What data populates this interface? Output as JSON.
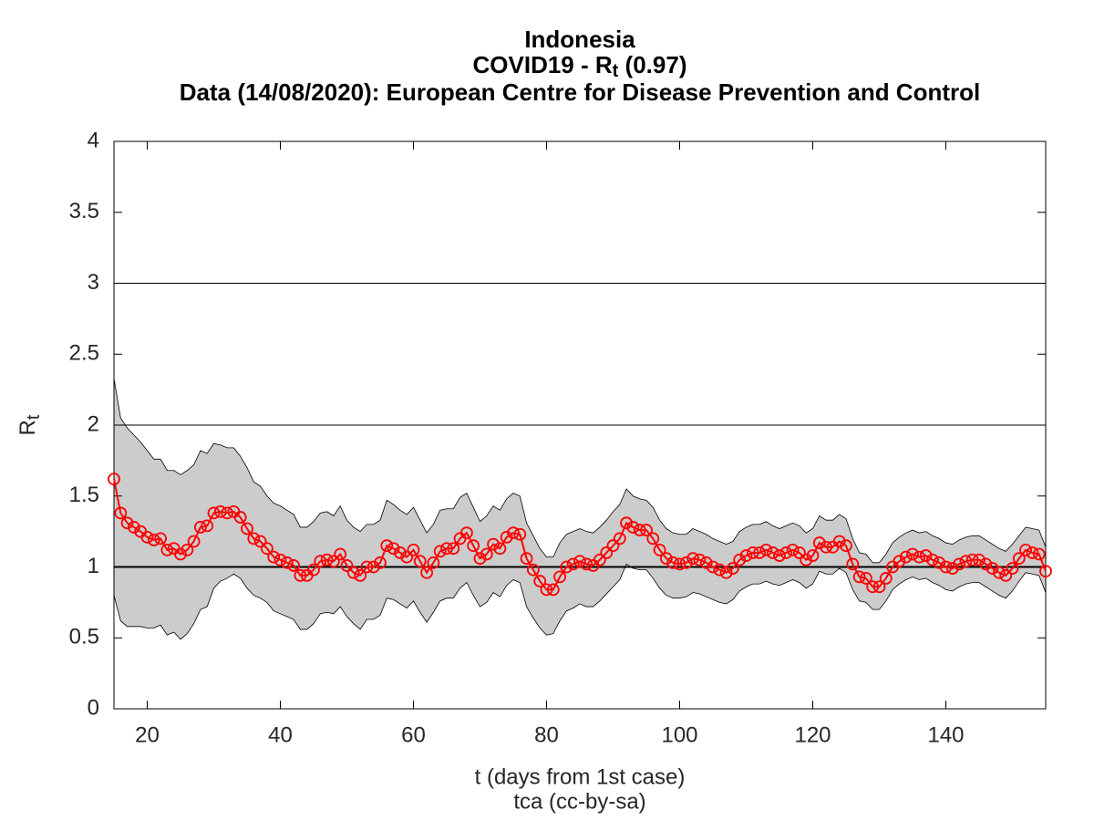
{
  "chart_data": {
    "type": "line",
    "title": [
      "Indonesia",
      [
        "COVID19 - R",
        "t",
        " (0.97)"
      ],
      "Data (14/08/2020): European Centre for Disease Prevention and Control"
    ],
    "xlabel": "t (days from 1st case)",
    "ylabel": [
      "R",
      "t"
    ],
    "credit": "tca (cc-by-sa)",
    "xlim": [
      15,
      155
    ],
    "ylim": [
      0,
      4
    ],
    "xticks": [
      20,
      40,
      60,
      80,
      100,
      120,
      140
    ],
    "yticks": [
      0,
      0.5,
      1,
      1.5,
      2,
      2.5,
      3,
      3.5,
      4
    ],
    "reference_lines": [
      1,
      2,
      3
    ],
    "x": [
      15,
      16,
      17,
      18,
      19,
      20,
      21,
      22,
      23,
      24,
      25,
      26,
      27,
      28,
      29,
      30,
      31,
      32,
      33,
      34,
      35,
      36,
      37,
      38,
      39,
      40,
      41,
      42,
      43,
      44,
      45,
      46,
      47,
      48,
      49,
      50,
      51,
      52,
      53,
      54,
      55,
      56,
      57,
      58,
      59,
      60,
      61,
      62,
      63,
      64,
      65,
      66,
      67,
      68,
      69,
      70,
      71,
      72,
      73,
      74,
      75,
      76,
      77,
      78,
      79,
      80,
      81,
      82,
      83,
      84,
      85,
      86,
      87,
      88,
      89,
      90,
      91,
      92,
      93,
      94,
      95,
      96,
      97,
      98,
      99,
      100,
      101,
      102,
      103,
      104,
      105,
      106,
      107,
      108,
      109,
      110,
      111,
      112,
      113,
      114,
      115,
      116,
      117,
      118,
      119,
      120,
      121,
      122,
      123,
      124,
      125,
      126,
      127,
      128,
      129,
      130,
      131,
      132,
      133,
      134,
      135,
      136,
      137,
      138,
      139,
      140,
      141,
      142,
      143,
      144,
      145,
      146,
      147,
      148,
      149,
      150,
      151,
      152,
      153,
      154,
      155
    ],
    "series": [
      {
        "color": "#ff0000",
        "values": [
          1.62,
          1.38,
          1.31,
          1.28,
          1.25,
          1.21,
          1.19,
          1.2,
          1.12,
          1.13,
          1.09,
          1.12,
          1.18,
          1.28,
          1.29,
          1.38,
          1.39,
          1.38,
          1.39,
          1.35,
          1.27,
          1.2,
          1.18,
          1.13,
          1.07,
          1.05,
          1.03,
          1.01,
          0.94,
          0.94,
          0.98,
          1.04,
          1.05,
          1.04,
          1.09,
          1.01,
          0.96,
          0.94,
          1.0,
          1.0,
          1.03,
          1.15,
          1.13,
          1.1,
          1.07,
          1.12,
          1.04,
          0.96,
          1.03,
          1.11,
          1.13,
          1.13,
          1.2,
          1.24,
          1.15,
          1.06,
          1.09,
          1.16,
          1.13,
          1.21,
          1.24,
          1.23,
          1.06,
          0.98,
          0.9,
          0.84,
          0.84,
          0.93,
          1.0,
          1.02,
          1.04,
          1.02,
          1.01,
          1.05,
          1.1,
          1.15,
          1.2,
          1.31,
          1.28,
          1.26,
          1.26,
          1.2,
          1.12,
          1.06,
          1.03,
          1.02,
          1.03,
          1.06,
          1.05,
          1.03,
          1.0,
          0.98,
          0.96,
          0.99,
          1.05,
          1.08,
          1.1,
          1.1,
          1.12,
          1.1,
          1.08,
          1.1,
          1.12,
          1.1,
          1.05,
          1.08,
          1.17,
          1.14,
          1.14,
          1.18,
          1.15,
          1.02,
          0.93,
          0.92,
          0.86,
          0.86,
          0.92,
          1.0,
          1.04,
          1.07,
          1.09,
          1.07,
          1.08,
          1.05,
          1.03,
          1.0,
          0.99,
          1.02,
          1.04,
          1.05,
          1.05,
          1.02,
          0.99,
          0.96,
          0.94,
          0.99,
          1.06,
          1.12,
          1.1,
          1.09,
          0.97
        ]
      }
    ],
    "band": {
      "color": "#cccccc",
      "upper": [
        2.33,
        2.05,
        1.98,
        1.93,
        1.88,
        1.82,
        1.76,
        1.76,
        1.68,
        1.68,
        1.65,
        1.68,
        1.72,
        1.82,
        1.8,
        1.87,
        1.86,
        1.84,
        1.84,
        1.78,
        1.7,
        1.6,
        1.57,
        1.5,
        1.45,
        1.43,
        1.4,
        1.37,
        1.28,
        1.28,
        1.32,
        1.38,
        1.39,
        1.36,
        1.43,
        1.33,
        1.28,
        1.25,
        1.3,
        1.3,
        1.33,
        1.47,
        1.44,
        1.4,
        1.37,
        1.42,
        1.33,
        1.24,
        1.3,
        1.4,
        1.41,
        1.41,
        1.49,
        1.52,
        1.42,
        1.32,
        1.36,
        1.43,
        1.4,
        1.48,
        1.52,
        1.5,
        1.31,
        1.22,
        1.13,
        1.07,
        1.07,
        1.17,
        1.23,
        1.25,
        1.27,
        1.25,
        1.24,
        1.28,
        1.33,
        1.39,
        1.44,
        1.55,
        1.5,
        1.48,
        1.47,
        1.42,
        1.33,
        1.27,
        1.24,
        1.23,
        1.23,
        1.27,
        1.25,
        1.23,
        1.2,
        1.18,
        1.16,
        1.18,
        1.25,
        1.28,
        1.3,
        1.3,
        1.32,
        1.29,
        1.27,
        1.29,
        1.31,
        1.29,
        1.24,
        1.27,
        1.36,
        1.33,
        1.33,
        1.37,
        1.34,
        1.2,
        1.1,
        1.09,
        1.03,
        1.03,
        1.09,
        1.17,
        1.21,
        1.24,
        1.26,
        1.24,
        1.25,
        1.22,
        1.2,
        1.17,
        1.16,
        1.19,
        1.21,
        1.22,
        1.22,
        1.19,
        1.16,
        1.13,
        1.11,
        1.16,
        1.22,
        1.28,
        1.27,
        1.26,
        1.14
      ],
      "lower": [
        0.8,
        0.62,
        0.58,
        0.58,
        0.58,
        0.57,
        0.57,
        0.59,
        0.52,
        0.54,
        0.49,
        0.53,
        0.6,
        0.7,
        0.72,
        0.85,
        0.9,
        0.92,
        0.95,
        0.92,
        0.85,
        0.8,
        0.78,
        0.75,
        0.69,
        0.67,
        0.65,
        0.63,
        0.56,
        0.56,
        0.6,
        0.67,
        0.68,
        0.67,
        0.72,
        0.65,
        0.6,
        0.56,
        0.63,
        0.63,
        0.66,
        0.78,
        0.77,
        0.74,
        0.71,
        0.76,
        0.68,
        0.61,
        0.68,
        0.76,
        0.78,
        0.78,
        0.85,
        0.89,
        0.8,
        0.72,
        0.75,
        0.82,
        0.79,
        0.87,
        0.91,
        0.89,
        0.72,
        0.64,
        0.57,
        0.52,
        0.53,
        0.62,
        0.69,
        0.71,
        0.74,
        0.72,
        0.72,
        0.76,
        0.81,
        0.86,
        0.91,
        1.02,
        0.99,
        0.98,
        0.98,
        0.92,
        0.85,
        0.8,
        0.78,
        0.78,
        0.79,
        0.82,
        0.81,
        0.79,
        0.77,
        0.75,
        0.74,
        0.77,
        0.83,
        0.86,
        0.88,
        0.88,
        0.9,
        0.88,
        0.87,
        0.89,
        0.91,
        0.89,
        0.85,
        0.88,
        0.97,
        0.95,
        0.95,
        0.99,
        0.96,
        0.84,
        0.76,
        0.75,
        0.7,
        0.7,
        0.76,
        0.84,
        0.88,
        0.91,
        0.93,
        0.91,
        0.92,
        0.89,
        0.87,
        0.84,
        0.83,
        0.86,
        0.88,
        0.89,
        0.89,
        0.86,
        0.83,
        0.8,
        0.78,
        0.83,
        0.9,
        0.96,
        0.95,
        0.94,
        0.82
      ]
    }
  }
}
